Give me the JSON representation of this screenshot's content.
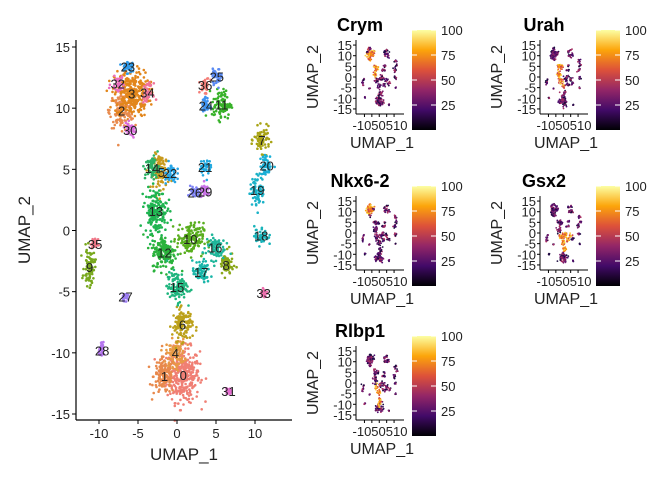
{
  "chart_data": [
    {
      "type": "scatter",
      "title": "",
      "xlabel": "UMAP_1",
      "ylabel": "UMAP_2",
      "xlim": [
        -14,
        15
      ],
      "ylim": [
        -15.5,
        16
      ],
      "xticks": [
        "-10",
        "-5",
        "0",
        "5",
        "10"
      ],
      "yticks": [
        "15",
        "10",
        "5",
        "0",
        "-5",
        "-10",
        "-15"
      ],
      "clusters": [
        {
          "label": "0",
          "x": 0.8,
          "y": -11.8,
          "rx": 2.1,
          "ry": 2.2,
          "color": "#F07F74"
        },
        {
          "label": "1",
          "x": -1.6,
          "y": -11.9,
          "rx": 1.4,
          "ry": 1.5,
          "color": "#E8894C"
        },
        {
          "label": "2",
          "x": -7.1,
          "y": 9.8,
          "rx": 1.5,
          "ry": 1.4,
          "color": "#E88A4D"
        },
        {
          "label": "3",
          "x": -5.8,
          "y": 11.2,
          "rx": 2.2,
          "ry": 1.9,
          "color": "#E2861B"
        },
        {
          "label": "4",
          "x": -0.2,
          "y": -10.0,
          "rx": 1.2,
          "ry": 1.1,
          "color": "#E89A45"
        },
        {
          "label": "5",
          "x": -2.0,
          "y": 4.8,
          "rx": 1.0,
          "ry": 1.4,
          "color": "#C89A1E"
        },
        {
          "label": "6",
          "x": 0.7,
          "y": -7.7,
          "rx": 1.3,
          "ry": 1.3,
          "color": "#BCA11A"
        },
        {
          "label": "7",
          "x": 10.9,
          "y": 7.4,
          "rx": 1.0,
          "ry": 1.0,
          "color": "#A8A314"
        },
        {
          "label": "8",
          "x": 6.3,
          "y": -2.8,
          "rx": 0.9,
          "ry": 1.0,
          "color": "#8AA719"
        },
        {
          "label": "9",
          "x": -11.2,
          "y": -3.0,
          "rx": 0.7,
          "ry": 1.5,
          "color": "#78A81D"
        },
        {
          "label": "10",
          "x": 1.7,
          "y": -0.7,
          "rx": 1.7,
          "ry": 1.3,
          "color": "#59AE1E"
        },
        {
          "label": "11",
          "x": 5.7,
          "y": 10.3,
          "rx": 1.2,
          "ry": 1.2,
          "color": "#38B22A"
        },
        {
          "label": "12",
          "x": -1.6,
          "y": -1.8,
          "rx": 1.6,
          "ry": 1.4,
          "color": "#2AB23C"
        },
        {
          "label": "13",
          "x": -2.7,
          "y": 1.6,
          "rx": 1.4,
          "ry": 1.8,
          "color": "#1EB450"
        },
        {
          "label": "14",
          "x": -3.2,
          "y": 5.1,
          "rx": 0.9,
          "ry": 1.0,
          "color": "#2DB165"
        },
        {
          "label": "15",
          "x": 0.0,
          "y": -4.6,
          "rx": 1.3,
          "ry": 1.2,
          "color": "#1EB57E"
        },
        {
          "label": "16",
          "x": 4.9,
          "y": -1.4,
          "rx": 1.2,
          "ry": 1.0,
          "color": "#1EB69A"
        },
        {
          "label": "17",
          "x": 3.1,
          "y": -3.4,
          "rx": 1.1,
          "ry": 0.9,
          "color": "#18B5A8"
        },
        {
          "label": "18",
          "x": 10.8,
          "y": -0.4,
          "rx": 0.9,
          "ry": 0.8,
          "color": "#1AB4BA"
        },
        {
          "label": "19",
          "x": 10.3,
          "y": 3.3,
          "rx": 0.9,
          "ry": 1.2,
          "color": "#1BB2C8"
        },
        {
          "label": "20",
          "x": 11.5,
          "y": 5.3,
          "rx": 0.8,
          "ry": 0.8,
          "color": "#1AAFD6"
        },
        {
          "label": "21",
          "x": 3.6,
          "y": 5.2,
          "rx": 0.7,
          "ry": 0.7,
          "color": "#21A9E0"
        },
        {
          "label": "22",
          "x": -0.9,
          "y": 4.7,
          "rx": 0.8,
          "ry": 0.8,
          "color": "#26A4E6"
        },
        {
          "label": "23",
          "x": -6.3,
          "y": 13.4,
          "rx": 0.8,
          "ry": 0.6,
          "color": "#2F9BEA"
        },
        {
          "label": "24",
          "x": 3.7,
          "y": 10.2,
          "rx": 0.5,
          "ry": 0.7,
          "color": "#3D92F0"
        },
        {
          "label": "25",
          "x": 5.1,
          "y": 12.6,
          "rx": 0.7,
          "ry": 0.6,
          "color": "#5B8BF3"
        },
        {
          "label": "26",
          "x": 2.3,
          "y": 3.1,
          "rx": 0.6,
          "ry": 0.5,
          "color": "#7E83F4"
        },
        {
          "label": "27",
          "x": -6.6,
          "y": -5.4,
          "rx": 0.4,
          "ry": 0.3,
          "color": "#9C7DF2"
        },
        {
          "label": "28",
          "x": -9.6,
          "y": -9.8,
          "rx": 0.4,
          "ry": 0.5,
          "color": "#B576EE"
        },
        {
          "label": "29",
          "x": 3.6,
          "y": 3.2,
          "rx": 0.6,
          "ry": 0.5,
          "color": "#C972E8"
        },
        {
          "label": "30",
          "x": -6.0,
          "y": 8.2,
          "rx": 0.9,
          "ry": 0.6,
          "color": "#DB6DDE"
        },
        {
          "label": "31",
          "x": 6.6,
          "y": -13.1,
          "rx": 0.3,
          "ry": 0.3,
          "color": "#E56DD0"
        },
        {
          "label": "32",
          "x": -7.6,
          "y": 12.0,
          "rx": 0.8,
          "ry": 0.6,
          "color": "#EB6EC0"
        },
        {
          "label": "33",
          "x": 11.1,
          "y": -5.1,
          "rx": 0.3,
          "ry": 0.3,
          "color": "#EE70AF"
        },
        {
          "label": "34",
          "x": -3.8,
          "y": 11.3,
          "rx": 0.7,
          "ry": 0.7,
          "color": "#F0739B"
        },
        {
          "label": "35",
          "x": -10.5,
          "y": -1.1,
          "rx": 0.4,
          "ry": 0.4,
          "color": "#F07889"
        },
        {
          "label": "36",
          "x": 3.6,
          "y": 11.9,
          "rx": 0.6,
          "ry": 0.6,
          "color": "#F47E78"
        }
      ]
    },
    {
      "type": "scatter",
      "title": "Crym",
      "xlabel": "UMAP_1",
      "ylabel": "UMAP_2",
      "xticks": [
        "-10",
        "-5",
        "0",
        "5",
        "10"
      ],
      "tick_text": "-1050510",
      "yticks": [
        "15",
        "10",
        "5",
        "0",
        "-5",
        "-10",
        "-15"
      ],
      "legend": {
        "ticks": [
          "100",
          "75",
          "50",
          "25"
        ],
        "range": [
          0,
          100
        ]
      },
      "high_clusters": [
        "30",
        "2",
        "3",
        "34",
        "5",
        "14",
        "22",
        "13"
      ]
    },
    {
      "type": "scatter",
      "title": "Urah",
      "xlabel": "UMAP_1",
      "ylabel": "UMAP_2",
      "xticks": [
        "-10",
        "-5",
        "0",
        "5",
        "10"
      ],
      "tick_text": "-1050510",
      "yticks": [
        "15",
        "10",
        "5",
        "0",
        "-5",
        "-10",
        "-15"
      ],
      "legend": {
        "ticks": [
          "100",
          "75",
          "50",
          "25"
        ],
        "range": [
          0,
          100
        ]
      },
      "high_clusters": [
        "5",
        "14",
        "22",
        "13",
        "12",
        "15"
      ]
    },
    {
      "type": "scatter",
      "title": "Nkx6-2",
      "xlabel": "UMAP_1",
      "ylabel": "UMAP_2",
      "xticks": [
        "-10",
        "-5",
        "0",
        "5",
        "10"
      ],
      "tick_text": "-1050510",
      "yticks": [
        "15",
        "10",
        "5",
        "0",
        "-5",
        "-10",
        "-15"
      ],
      "legend": {
        "ticks": [
          "100",
          "75",
          "50",
          "25"
        ],
        "range": [
          0,
          100
        ]
      },
      "high_clusters": [
        "3",
        "2",
        "32",
        "23"
      ]
    },
    {
      "type": "scatter",
      "title": "Gsx2",
      "xlabel": "UMAP_1",
      "ylabel": "UMAP_2",
      "xticks": [
        "-10",
        "-5",
        "0",
        "5",
        "10"
      ],
      "tick_text": "-1050510",
      "yticks": [
        "15",
        "10",
        "5",
        "0",
        "-5",
        "-10",
        "-15"
      ],
      "legend": {
        "ticks": [
          "100",
          "75",
          "50",
          "25"
        ],
        "range": [
          0,
          100
        ]
      },
      "high_clusters": [
        "10",
        "12",
        "16",
        "17",
        "15",
        "6"
      ]
    },
    {
      "type": "scatter",
      "title": "Rlbp1",
      "xlabel": "UMAP_1",
      "ylabel": "UMAP_2",
      "xticks": [
        "-10",
        "-5",
        "0",
        "5",
        "10"
      ],
      "tick_text": "-1050510",
      "yticks": [
        "15",
        "10",
        "5",
        "0",
        "-5",
        "-10",
        "-15"
      ],
      "legend": {
        "ticks": [
          "100",
          "75",
          "50",
          "25"
        ],
        "range": [
          0,
          100
        ]
      },
      "high_clusters": [
        "6",
        "4",
        "15",
        "12"
      ]
    }
  ]
}
